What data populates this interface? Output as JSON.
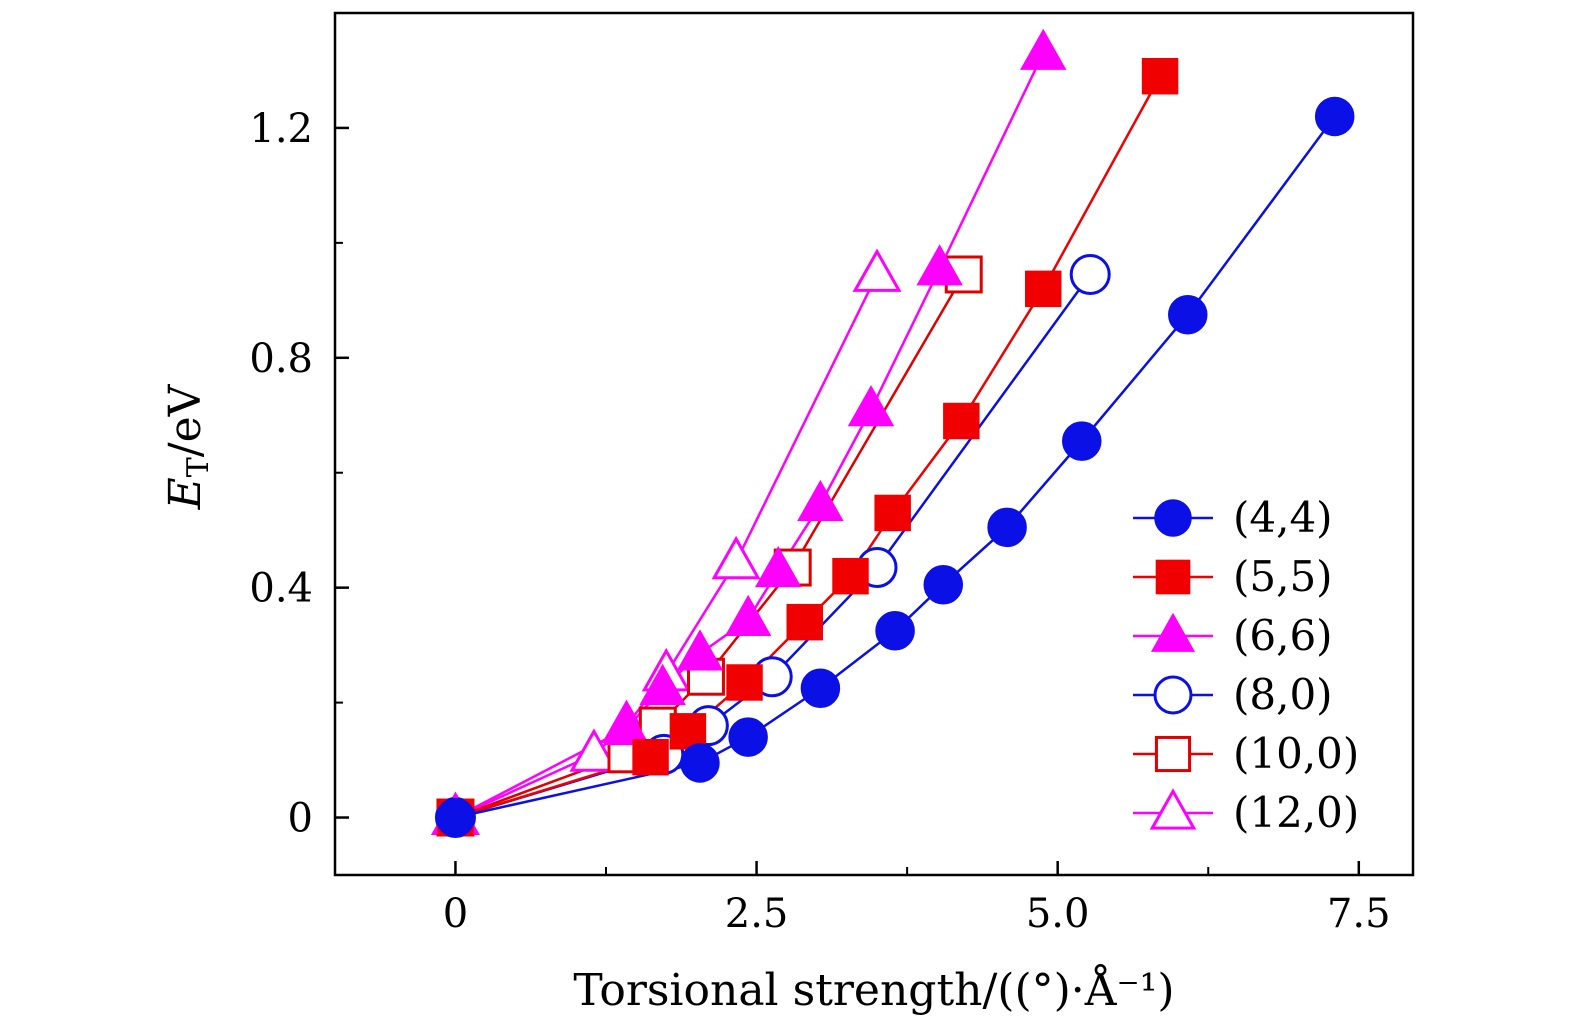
{
  "chart_data": {
    "type": "line",
    "xlabel": "Torsional strength/((°)·Å⁻¹)",
    "ylabel_main": "E",
    "ylabel_sub": "T",
    "ylabel_unit": "/eV",
    "xlim": [
      -1.0,
      7.95
    ],
    "ylim": [
      -0.1,
      1.4
    ],
    "xticks": [
      0,
      2.5,
      5.0,
      7.5
    ],
    "xtick_labels": [
      "0",
      "2.5",
      "5.0",
      "7.5"
    ],
    "yticks": [
      0,
      0.4,
      0.8,
      1.2
    ],
    "ytick_labels": [
      "0",
      "0.4",
      "0.8",
      "1.2"
    ],
    "legend_position": "bottom-right",
    "series": [
      {
        "name": "(4,4)",
        "marker": "circle",
        "filled": true,
        "color": "#0a10e6",
        "x": [
          0,
          2.03,
          2.43,
          3.03,
          3.65,
          4.05,
          4.58,
          5.2,
          6.08,
          7.3
        ],
        "y": [
          0,
          0.095,
          0.14,
          0.225,
          0.325,
          0.405,
          0.505,
          0.655,
          0.875,
          1.22
        ]
      },
      {
        "name": "(5,5)",
        "marker": "square",
        "filled": true,
        "color": "#f00000",
        "x": [
          0,
          1.62,
          1.93,
          2.4,
          2.9,
          3.28,
          3.63,
          4.2,
          4.88,
          5.85
        ],
        "y": [
          0,
          0.105,
          0.15,
          0.235,
          0.34,
          0.42,
          0.53,
          0.69,
          0.92,
          1.29
        ]
      },
      {
        "name": "(6,6)",
        "marker": "triangle",
        "filled": true,
        "color": "#ff00ff",
        "x": [
          0,
          1.42,
          1.72,
          2.03,
          2.43,
          2.68,
          3.03,
          3.45,
          4.02,
          4.88
        ],
        "y": [
          0,
          0.155,
          0.225,
          0.285,
          0.345,
          0.43,
          0.545,
          0.71,
          0.955,
          1.33
        ]
      },
      {
        "name": "(8,0)",
        "marker": "circle",
        "filled": false,
        "color": "#0a10e6",
        "x": [
          0,
          1.73,
          2.1,
          2.63,
          3.5,
          5.27
        ],
        "y": [
          0,
          0.11,
          0.16,
          0.245,
          0.435,
          0.945
        ]
      },
      {
        "name": "(10,0)",
        "marker": "square",
        "filled": false,
        "color": "#e00000",
        "x": [
          0,
          1.42,
          1.68,
          2.08,
          2.8,
          4.22
        ],
        "y": [
          0,
          0.11,
          0.16,
          0.245,
          0.435,
          0.945
        ]
      },
      {
        "name": "(12,0)",
        "marker": "triangle",
        "filled": false,
        "color": "#ff00ff",
        "x": [
          0,
          1.15,
          1.42,
          1.75,
          2.33,
          3.5
        ],
        "y": [
          0,
          0.11,
          0.16,
          0.25,
          0.445,
          0.945
        ]
      }
    ]
  }
}
